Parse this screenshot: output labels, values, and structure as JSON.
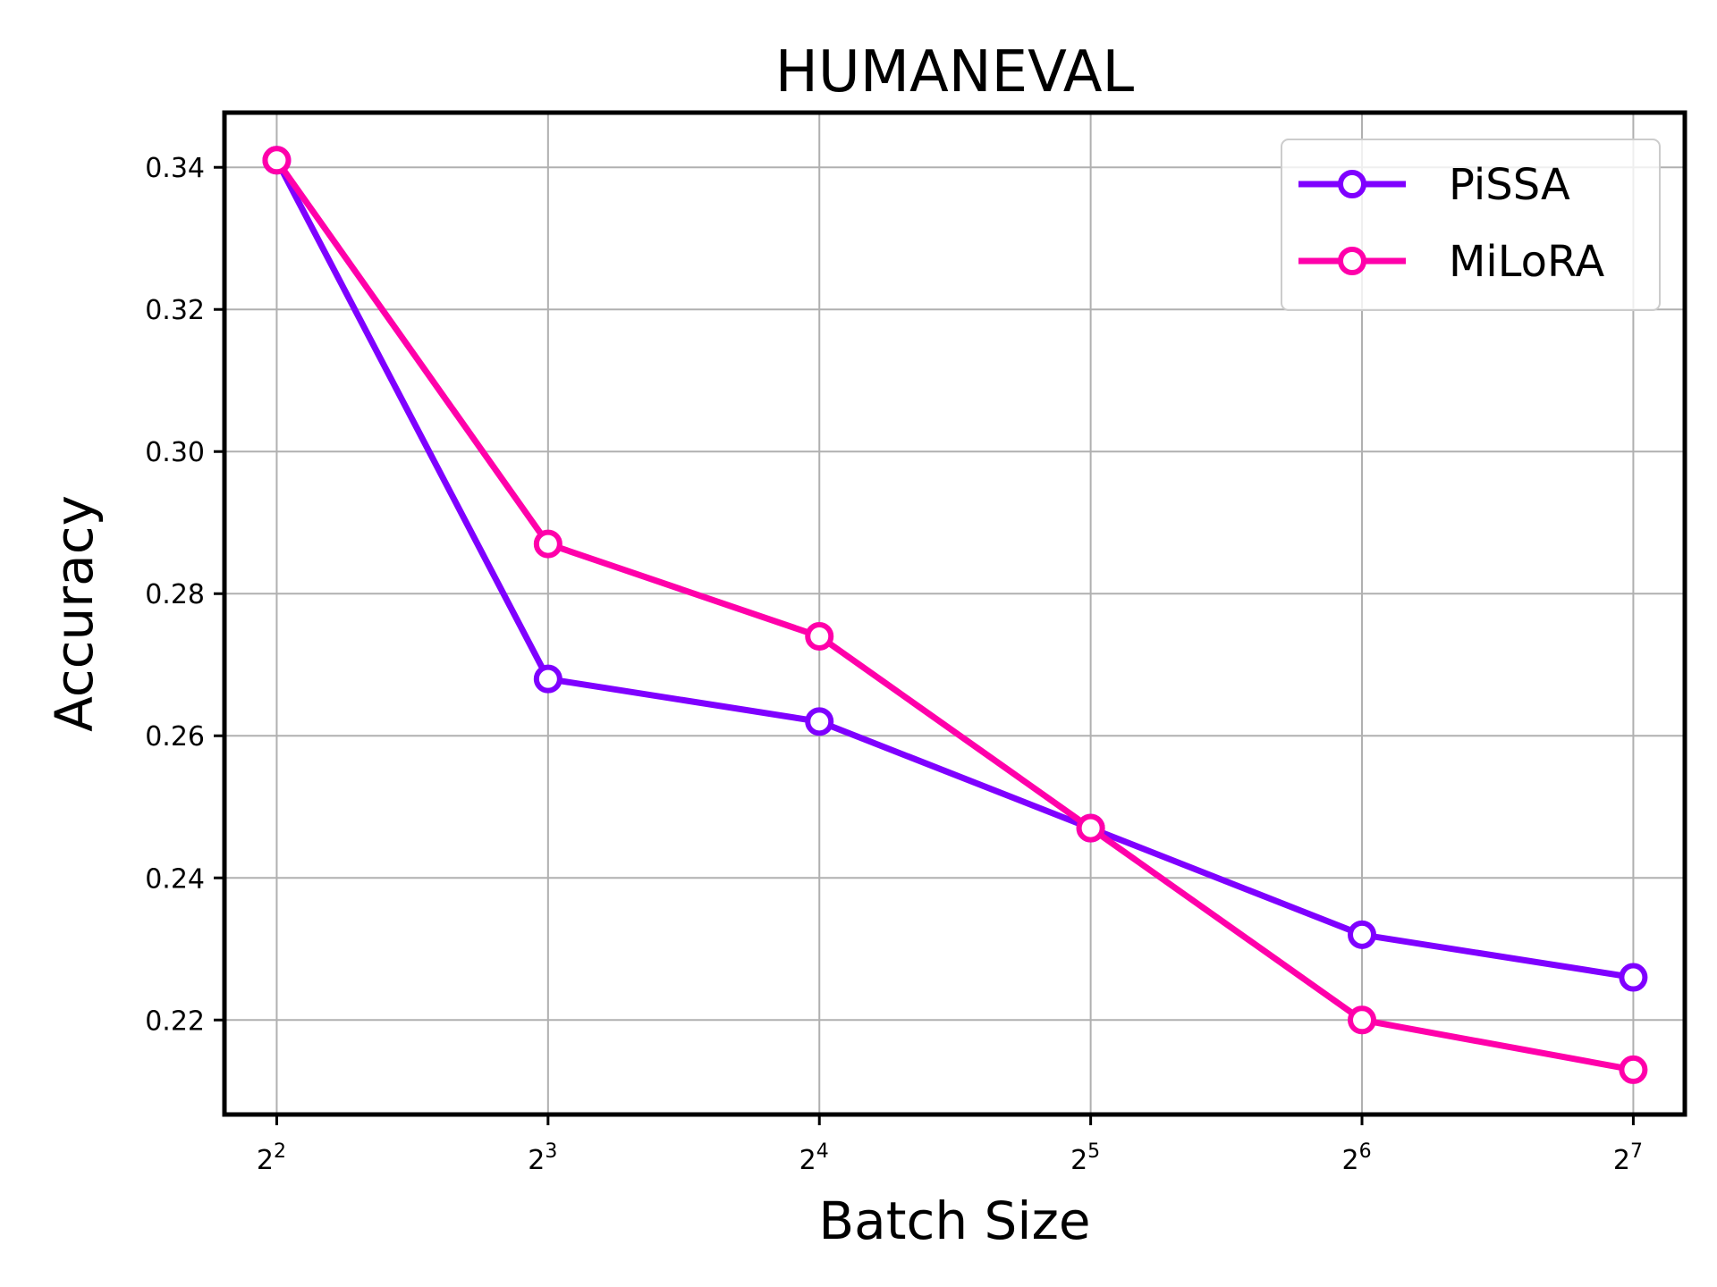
{
  "chart_data": {
    "type": "line",
    "title": "HUMANEVAL",
    "xlabel": "Batch Size",
    "ylabel": "Accuracy",
    "x_scale": "log2",
    "x": [
      4,
      8,
      16,
      32,
      64,
      128
    ],
    "x_tick_labels": [
      {
        "base": "2",
        "exp": "2"
      },
      {
        "base": "2",
        "exp": "3"
      },
      {
        "base": "2",
        "exp": "4"
      },
      {
        "base": "2",
        "exp": "5"
      },
      {
        "base": "2",
        "exp": "6"
      },
      {
        "base": "2",
        "exp": "7"
      }
    ],
    "y_ticks": [
      0.22,
      0.24,
      0.26,
      0.28,
      0.3,
      0.32,
      0.34
    ],
    "y_tick_labels": [
      "0.22",
      "0.24",
      "0.26",
      "0.28",
      "0.30",
      "0.32",
      "0.34"
    ],
    "xlim": [
      3.5,
      146
    ],
    "ylim": [
      0.2067,
      0.3477
    ],
    "grid": true,
    "legend_position": "top-right",
    "series": [
      {
        "name": "PiSSA",
        "color": "#7f00ff",
        "values": [
          0.341,
          0.268,
          0.262,
          0.247,
          0.232,
          0.226
        ]
      },
      {
        "name": "MiLoRA",
        "color": "#ff00aa",
        "values": [
          0.341,
          0.287,
          0.274,
          0.247,
          0.22,
          0.213
        ]
      }
    ]
  }
}
